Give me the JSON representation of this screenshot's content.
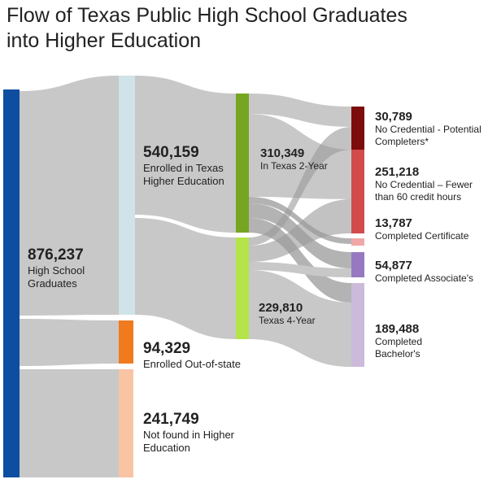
{
  "title": "Flow of Texas Public High School Graduates into Higher Education",
  "colors": {
    "graduates": "#0d4ea0",
    "enrolled_texas": "#cfe3e8",
    "out_of_state": "#f07a1e",
    "not_found": "#f9c4a4",
    "two_year": "#76a521",
    "four_year": "#b4e34a",
    "no_cred_potential": "#7d0c0c",
    "no_cred_fewer60": "#d14b4b",
    "certificate": "#f0a7a7",
    "associates": "#9779c1",
    "bachelors": "#cbbada",
    "flow": "#c8c8c8",
    "flow_dark": "#9a9a9a"
  },
  "chart_data": {
    "type": "sankey",
    "nodes": [
      {
        "id": "graduates",
        "value": "876,237",
        "label": "High School Graduates"
      },
      {
        "id": "enrolled_texas",
        "value": "540,159",
        "label": "Enrolled in Texas Higher Education"
      },
      {
        "id": "out_of_state",
        "value": "94,329",
        "label": "Enrolled Out-of-state"
      },
      {
        "id": "not_found",
        "value": "241,749",
        "label": "Not found in Higher Education"
      },
      {
        "id": "two_year",
        "value": "310,349",
        "label": "In Texas 2-Year"
      },
      {
        "id": "four_year",
        "value": "229,810",
        "label": "Texas 4-Year"
      },
      {
        "id": "no_cred_potential",
        "value": "30,789",
        "label": "No Credential - Potential Completers*"
      },
      {
        "id": "no_cred_fewer60",
        "value": "251,218",
        "label": "No Credential – Fewer than 60 credit hours"
      },
      {
        "id": "certificate",
        "value": "13,787",
        "label": "Completed Certificate"
      },
      {
        "id": "associates",
        "value": "54,877",
        "label": "Completed Associate's"
      },
      {
        "id": "bachelors",
        "value": "189,488",
        "label": "Completed Bachelor's"
      }
    ],
    "links": [
      {
        "source": "graduates",
        "target": "enrolled_texas",
        "value": 540159
      },
      {
        "source": "graduates",
        "target": "out_of_state",
        "value": 94329
      },
      {
        "source": "graduates",
        "target": "not_found",
        "value": 241749
      },
      {
        "source": "enrolled_texas",
        "target": "two_year",
        "value": 310349
      },
      {
        "source": "enrolled_texas",
        "target": "four_year",
        "value": 229810
      }
    ]
  }
}
